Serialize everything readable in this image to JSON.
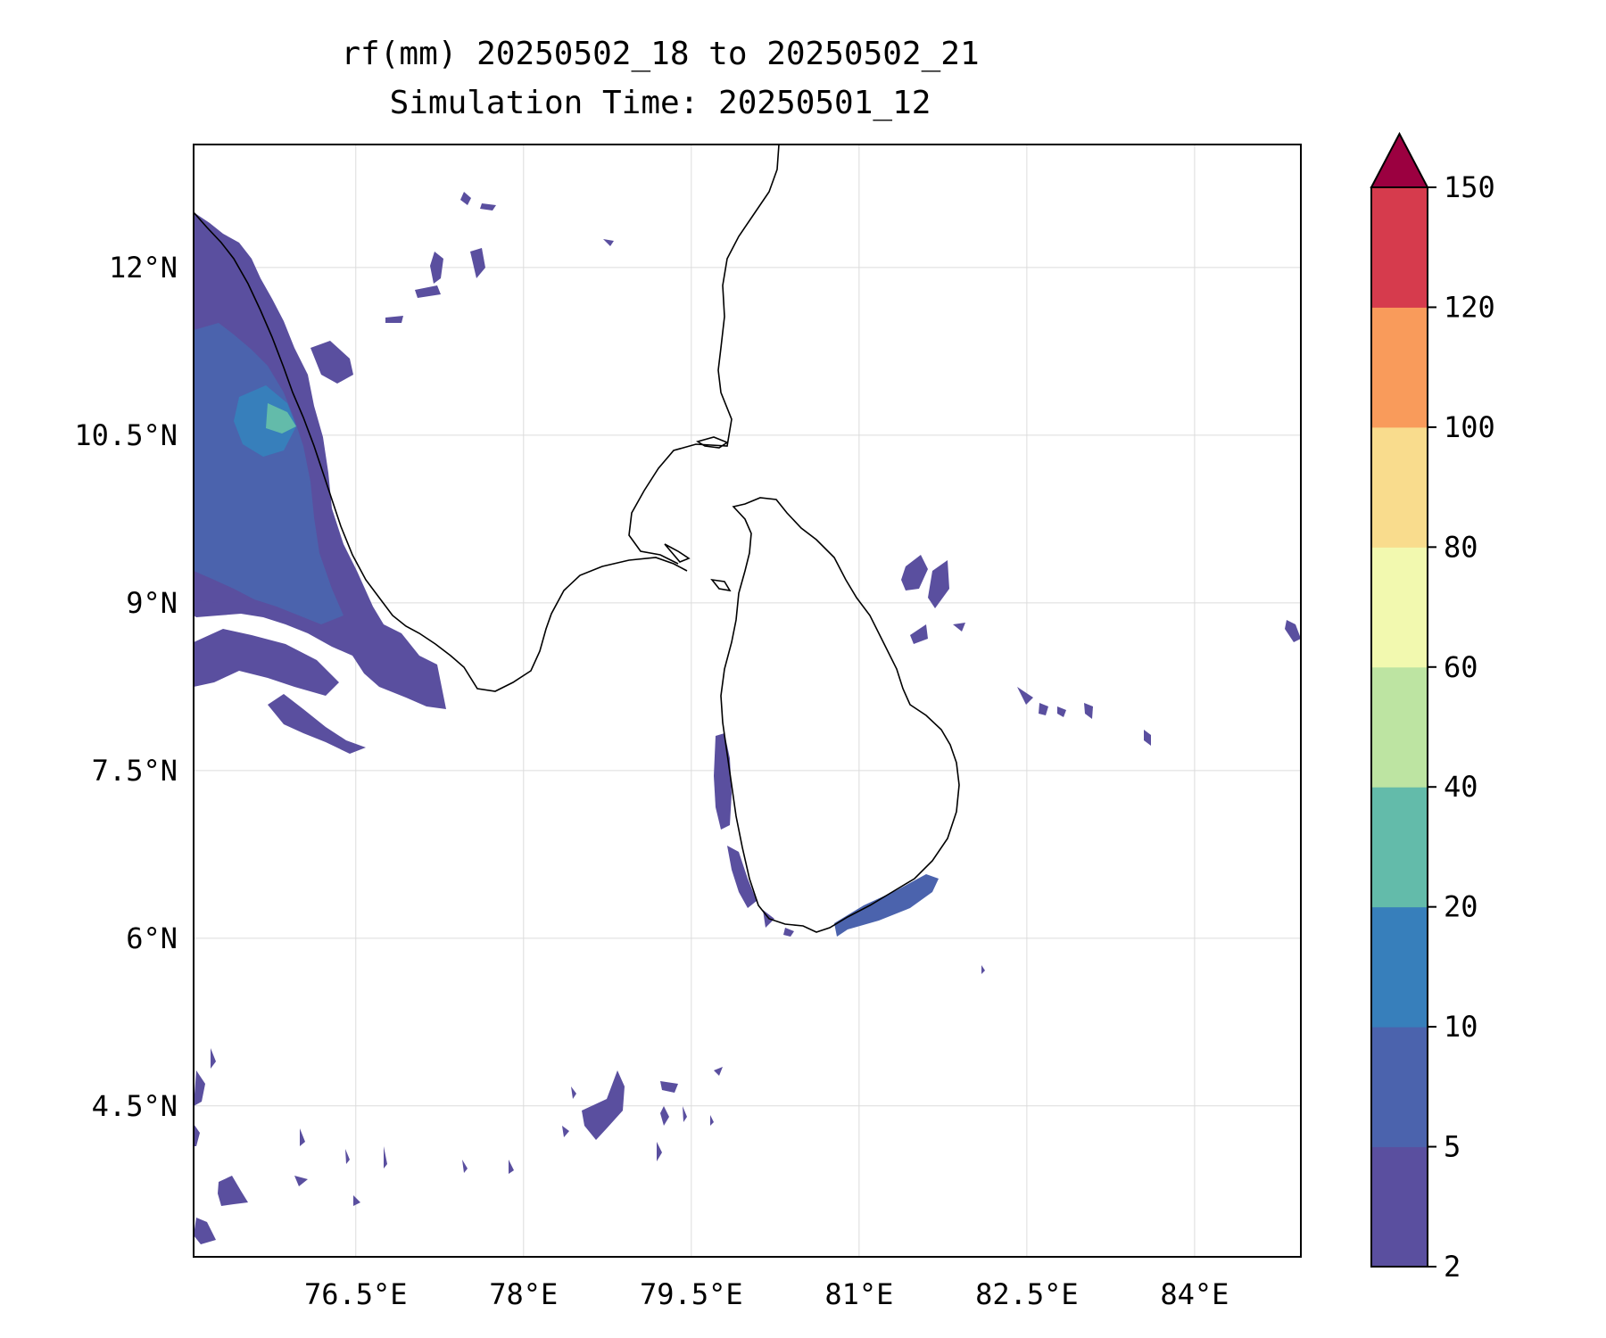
{
  "title": {
    "line1": "rf(mm) 20250502_18 to 20250502_21",
    "line2": "Simulation Time: 20250501_12"
  },
  "map": {
    "lon_ticks": [
      "76.5°E",
      "78°E",
      "79.5°E",
      "81°E",
      "82.5°E",
      "84°E"
    ],
    "lat_ticks": [
      "12°N",
      "10.5°N",
      "9°N",
      "7.5°N",
      "6°N",
      "4.5°N"
    ],
    "lon_tick_values": [
      76.5,
      78,
      79.5,
      81,
      82.5,
      84
    ],
    "lat_tick_values": [
      12,
      10.5,
      9,
      7.5,
      6,
      4.5
    ],
    "lon_range": [
      75.05,
      84.95
    ],
    "lat_range": [
      3.15,
      13.1
    ],
    "gridlines": true
  },
  "colorbar": {
    "levels": [
      "2",
      "5",
      "10",
      "20",
      "40",
      "60",
      "80",
      "100",
      "120",
      "150"
    ],
    "colors": [
      "#5a4f9f",
      "#4b63ad",
      "#377fbb",
      "#63bbaa",
      "#bde4a2",
      "#f2f9af",
      "#f9dc8d",
      "#f99b5b",
      "#d63b4d"
    ],
    "extend_color": "#9b0040",
    "extend": "max"
  },
  "rain_colors": {
    "light": "#5a4f9f",
    "moderate": "#4b63ad",
    "heavy": "#377fbb",
    "very_heavy": "#63bbaa"
  }
}
